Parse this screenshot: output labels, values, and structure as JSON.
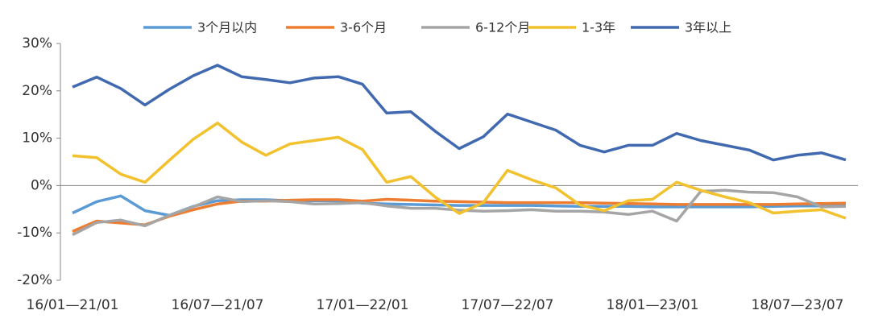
{
  "chart_data": {
    "type": "line",
    "categories": [
      "16/01—21/01",
      null,
      null,
      null,
      null,
      null,
      "16/07—21/07",
      null,
      null,
      null,
      null,
      null,
      "17/01—22/01",
      null,
      null,
      null,
      null,
      null,
      "17/07—22/07",
      null,
      null,
      null,
      null,
      null,
      "18/01—23/01",
      null,
      null,
      null,
      null,
      null,
      "18/07—23/07",
      null,
      null
    ],
    "series": [
      {
        "name": "3个月以内",
        "color": "#5b9bd5",
        "values": [
          -5.8,
          -3.4,
          -2.2,
          -5.3,
          -6.3,
          -4.4,
          -3.2,
          -3,
          -3,
          -3.2,
          -3.2,
          -3.2,
          -3.7,
          -3.9,
          -4,
          -4.1,
          -4.2,
          -4.2,
          -4.2,
          -4.2,
          -4.3,
          -4.4,
          -4.4,
          -4.4,
          -4.5,
          -4.5,
          -4.5,
          -4.5,
          -4.5,
          -4.4,
          -4.3,
          -4.3,
          -4.3
        ]
      },
      {
        "name": "3-6个月",
        "color": "#ed7d31",
        "values": [
          -9.7,
          -7.5,
          -7.9,
          -8.3,
          -6.5,
          -5.1,
          -3.9,
          -3.3,
          -3.3,
          -3.1,
          -3,
          -3,
          -3.3,
          -2.9,
          -3.1,
          -3.3,
          -3.4,
          -3.5,
          -3.6,
          -3.6,
          -3.6,
          -3.6,
          -3.7,
          -3.8,
          -3.9,
          -4,
          -4,
          -4,
          -4,
          -4,
          -3.9,
          -3.8,
          -3.7
        ]
      },
      {
        "name": "6-12个月",
        "color": "#a5a5a5",
        "values": [
          -10.4,
          -7.8,
          -7.3,
          -8.5,
          -6.3,
          -4.5,
          -2.4,
          -3.4,
          -3.2,
          -3.4,
          -3.9,
          -3.8,
          -3.6,
          -4.3,
          -4.8,
          -4.8,
          -5.2,
          -5.4,
          -5.3,
          -5.1,
          -5.4,
          -5.4,
          -5.6,
          -6.1,
          -5.4,
          -7.5,
          -1.2,
          -1,
          -1.4,
          -1.5,
          -2.4,
          -4.5,
          -4.4
        ]
      },
      {
        "name": "1-3年",
        "color": "#f2c12e",
        "values": [
          6.3,
          5.9,
          2.4,
          0.7,
          5.3,
          9.8,
          13.2,
          9.2,
          6.4,
          8.8,
          9.5,
          10.2,
          7.6,
          0.7,
          1.9,
          -2.4,
          -5.9,
          -3.6,
          3.2,
          1.2,
          -0.5,
          -4.1,
          -5.3,
          -3.2,
          -2.9,
          0.7,
          -1,
          -2.4,
          -3.6,
          -5.8,
          -5.4,
          -5.1,
          -6.9
        ]
      },
      {
        "name": "3年以上",
        "color": "#4169b0",
        "values": [
          20.8,
          22.9,
          20.5,
          17,
          20.3,
          23.2,
          25.4,
          23,
          22.4,
          21.7,
          22.7,
          23,
          21.4,
          15.3,
          15.6,
          11.5,
          7.8,
          10.3,
          15.1,
          13.4,
          11.7,
          8.5,
          7.1,
          8.5,
          8.5,
          11,
          9.5,
          8.5,
          7.5,
          5.4,
          6.4,
          6.9,
          5.4
        ]
      }
    ],
    "ylim": [
      -20,
      30
    ],
    "yticks": [
      {
        "value": -20,
        "label": "-20%"
      },
      {
        "value": -10,
        "label": "-10%"
      },
      {
        "value": 0,
        "label": "0%"
      },
      {
        "value": 10,
        "label": "10%"
      },
      {
        "value": 20,
        "label": "20%"
      },
      {
        "value": 30,
        "label": "30%"
      }
    ]
  }
}
